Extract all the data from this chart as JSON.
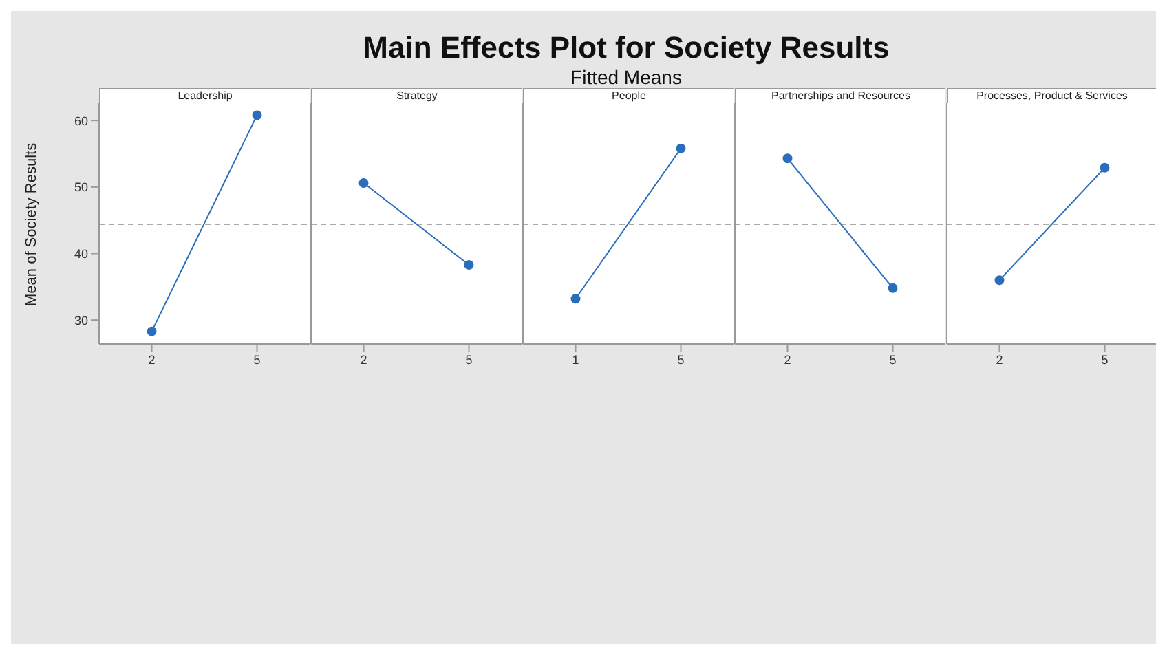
{
  "chart_data": [
    {
      "type": "line",
      "title": "Leadership",
      "annotations": [
        "Main Effects Plot for Society Results",
        "Fitted Means"
      ],
      "ylabel": "Mean of Society Results",
      "categories": [
        "2",
        "5"
      ],
      "values": [
        28.3,
        60.8
      ],
      "color": "#2a6ebb",
      "ylim": [
        26.4,
        62.6
      ],
      "yticks": [
        30,
        40,
        50,
        60
      ],
      "ref_lines": [
        {
          "axis": "y",
          "value": 44.4,
          "color": "#aaaaaa",
          "line_style": "dashed"
        }
      ],
      "marker": "circle",
      "grid": false
    },
    {
      "type": "line",
      "title": "Strategy",
      "categories": [
        "2",
        "5"
      ],
      "values": [
        50.6,
        38.3
      ],
      "color": "#2a6ebb",
      "ylim": [
        26.4,
        62.6
      ],
      "ref_lines": [
        {
          "axis": "y",
          "value": 44.4,
          "color": "#aaaaaa",
          "line_style": "dashed"
        }
      ],
      "marker": "circle",
      "grid": false,
      "tick_labels": "x"
    },
    {
      "type": "line",
      "title": "People",
      "categories": [
        "1",
        "5"
      ],
      "values": [
        33.2,
        55.8
      ],
      "color": "#2a6ebb",
      "ylim": [
        26.4,
        62.6
      ],
      "ref_lines": [
        {
          "axis": "y",
          "value": 44.4,
          "color": "#aaaaaa",
          "line_style": "dashed"
        }
      ],
      "marker": "circle",
      "grid": false,
      "tick_labels": "x"
    },
    {
      "type": "line",
      "title": "Partnerships and Resources",
      "categories": [
        "2",
        "5"
      ],
      "values": [
        54.3,
        34.8
      ],
      "color": "#2a6ebb",
      "ylim": [
        26.4,
        62.6
      ],
      "ref_lines": [
        {
          "axis": "y",
          "value": 44.4,
          "color": "#aaaaaa",
          "line_style": "dashed"
        }
      ],
      "marker": "circle",
      "grid": false,
      "tick_labels": "x"
    },
    {
      "type": "line",
      "title": "Processes, Product & Services",
      "categories": [
        "2",
        "5"
      ],
      "values": [
        36.0,
        52.9
      ],
      "color": "#2a6ebb",
      "ylim": [
        26.4,
        62.6
      ],
      "ref_lines": [
        {
          "axis": "y",
          "value": 44.4,
          "color": "#aaaaaa",
          "line_style": "dashed"
        }
      ],
      "marker": "circle",
      "grid": false,
      "tick_labels": "x"
    }
  ]
}
